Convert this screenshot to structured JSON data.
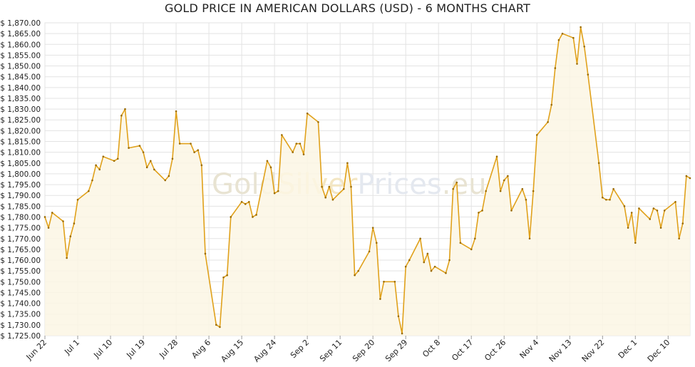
{
  "chart_data": {
    "type": "area",
    "title": "GOLD PRICE IN AMERICAN DOLLARS (USD) - 6 MONTHS CHART",
    "xlabel": "",
    "ylabel": "",
    "watermark": [
      "Gold",
      "Silver",
      "Prices",
      ".eu"
    ],
    "ylim": [
      1725,
      1870
    ],
    "y_step": 5,
    "y_tick_prefix": "$ ",
    "grid": true,
    "legend": "none",
    "colors": {
      "line": "#e0a11b",
      "fill": "#fbf6e4",
      "grid": "#e3e3e3",
      "point": "#9a6a00"
    },
    "x_tick_labels": [
      "Jun 22",
      "Jul 1",
      "Jul 10",
      "Jul 19",
      "Jul 28",
      "Aug 6",
      "Aug 15",
      "Aug 24",
      "Sep 2",
      "Sep 11",
      "Sep 20",
      "Sep 29",
      "Oct 8",
      "Oct 17",
      "Oct 26",
      "Nov 4",
      "Nov 13",
      "Nov 22",
      "Dec 1",
      "Dec 10"
    ],
    "x_tick_days": [
      0,
      9,
      18,
      27,
      36,
      45,
      54,
      63,
      72,
      81,
      90,
      99,
      108,
      117,
      126,
      135,
      144,
      153,
      162,
      171
    ],
    "x_range_days": [
      0,
      177
    ],
    "series": [
      {
        "days": [
          0,
          1,
          2,
          5,
          6,
          7,
          8,
          9,
          12,
          13,
          14,
          15,
          16,
          19,
          20,
          21,
          22,
          23,
          26,
          27,
          28,
          29,
          30,
          33,
          34,
          35,
          36,
          37,
          40,
          41,
          42,
          43,
          44,
          47,
          48,
          49,
          50,
          51,
          54,
          55,
          56,
          57,
          58,
          61,
          62,
          63,
          64,
          65,
          68,
          69,
          70,
          71,
          72,
          75,
          76,
          77,
          78,
          79,
          82,
          83,
          84,
          85,
          86,
          89,
          90,
          91,
          92,
          93,
          96,
          97,
          98,
          99,
          100,
          103,
          104,
          105,
          106,
          107,
          110,
          111,
          112,
          113,
          114,
          117,
          118,
          119,
          120,
          121,
          124,
          125,
          126,
          127,
          128,
          131,
          132,
          133,
          134,
          135,
          138,
          139,
          140,
          141,
          142,
          145,
          146,
          147,
          148,
          149,
          152,
          153,
          154,
          155,
          156,
          159,
          160,
          161,
          162,
          163,
          166,
          167,
          168,
          169,
          170,
          173,
          174,
          175,
          176,
          177
        ],
        "values": [
          1780,
          1775,
          1782,
          1778,
          1761,
          1771,
          1777,
          1788,
          1792,
          1797,
          1804,
          1802,
          1808,
          1806,
          1807,
          1827,
          1830,
          1812,
          1813,
          1810,
          1803,
          1806,
          1802,
          1797,
          1799,
          1807,
          1829,
          1814,
          1814,
          1810,
          1811,
          1804,
          1763,
          1730,
          1729,
          1752,
          1753,
          1780,
          1787,
          1786,
          1787,
          1780,
          1781,
          1806,
          1803,
          1791,
          1792,
          1818,
          1810,
          1814,
          1814,
          1809,
          1828,
          1824,
          1794,
          1789,
          1794,
          1788,
          1793,
          1805,
          1794,
          1753,
          1755,
          1764,
          1775,
          1768,
          1742,
          1750,
          1750,
          1734,
          1726,
          1757,
          1760,
          1770,
          1759,
          1763,
          1755,
          1757,
          1754,
          1760,
          1793,
          1796,
          1768,
          1765,
          1770,
          1782,
          1783,
          1792,
          1808,
          1792,
          1797,
          1799,
          1783,
          1793,
          1788,
          1770,
          1792,
          1818,
          1824,
          1832,
          1849,
          1862,
          1865,
          1863,
          1851,
          1868,
          1859,
          1846,
          1805,
          1789,
          1788,
          1788,
          1793,
          1785,
          1775,
          1782,
          1768,
          1784,
          1779,
          1784,
          1783,
          1775,
          1783,
          1787,
          1770,
          1777,
          1799,
          1798
        ]
      }
    ]
  }
}
